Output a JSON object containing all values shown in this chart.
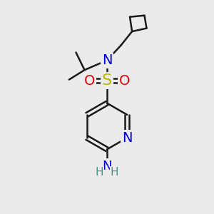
{
  "background_color": "#ebebeb",
  "bond_color": "#1a1a1a",
  "bond_width": 1.8,
  "atom_colors": {
    "N": "#0000ee",
    "S": "#b8b800",
    "O": "#ee0000",
    "NH2_N": "#0000ee",
    "NH2_H": "#4a9090"
  },
  "font_size_atom": 14,
  "font_size_nh2": 13
}
